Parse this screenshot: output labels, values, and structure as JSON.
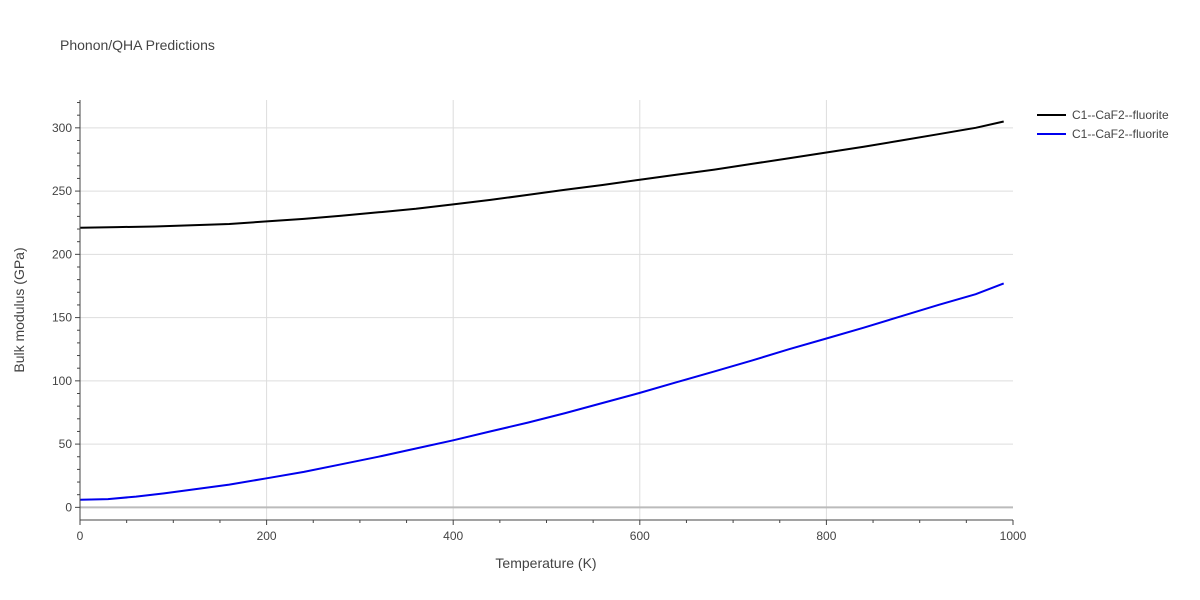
{
  "chart_data": {
    "type": "line",
    "title": "Phonon/QHA Predictions",
    "xlabel": "Temperature (K)",
    "ylabel": "Bulk modulus (GPa)",
    "xlim": [
      0,
      1000
    ],
    "ylim": [
      -10,
      322
    ],
    "xticks": [
      0,
      200,
      400,
      600,
      800,
      1000
    ],
    "yticks": [
      0,
      50,
      100,
      150,
      200,
      250,
      300
    ],
    "grid": true,
    "legend_position": "top-right",
    "series": [
      {
        "name": "C1--CaF2--fluorite",
        "color": "#000000",
        "x": [
          0,
          40,
          80,
          120,
          160,
          200,
          240,
          280,
          320,
          360,
          400,
          440,
          480,
          520,
          560,
          600,
          640,
          680,
          720,
          760,
          800,
          840,
          880,
          920,
          960,
          990
        ],
        "y": [
          221.0,
          221.5,
          222.0,
          223.0,
          224.0,
          226.0,
          228.0,
          230.5,
          233.2,
          236.0,
          239.5,
          243.0,
          247.0,
          251.0,
          254.8,
          259.0,
          263.0,
          267.0,
          271.5,
          276.0,
          280.5,
          285.0,
          290.0,
          295.0,
          300.0,
          305.0
        ]
      },
      {
        "name": "C1--CaF2--fluorite",
        "color": "#0000ee",
        "x": [
          0,
          30,
          60,
          90,
          120,
          160,
          200,
          240,
          280,
          320,
          360,
          400,
          440,
          480,
          520,
          560,
          600,
          640,
          680,
          720,
          760,
          800,
          840,
          880,
          920,
          960,
          990
        ],
        "y": [
          6.0,
          6.5,
          8.5,
          11.0,
          14.0,
          18.0,
          23.0,
          28.0,
          34.0,
          40.0,
          46.5,
          53.0,
          60.0,
          67.0,
          74.5,
          82.5,
          90.5,
          99.0,
          107.5,
          116.0,
          125.0,
          133.5,
          142.0,
          151.0,
          160.0,
          168.5,
          177.0
        ]
      }
    ]
  }
}
